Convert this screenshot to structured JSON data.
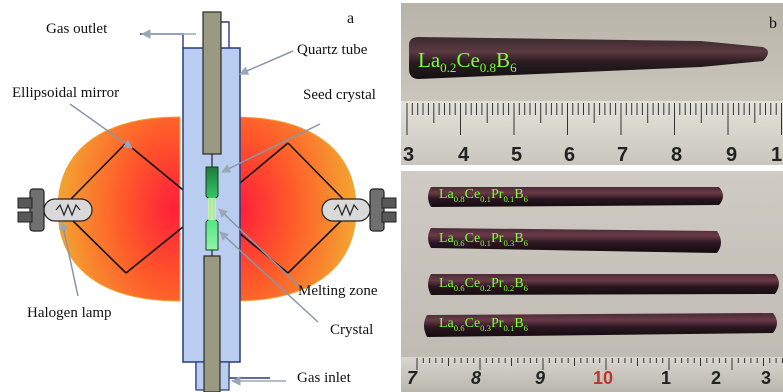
{
  "panel_a": {
    "letter": "a",
    "labels": {
      "gas_outlet": "Gas outlet",
      "quartz_tube": "Quartz tube",
      "ellipsoidal_mirror": "Ellipsoidal mirror",
      "seed_crystal": "Seed crystal",
      "halogen_lamp": "Halogen lamp",
      "melting_zone": "Melting zone",
      "crystal": "Crystal",
      "gas_inlet": "Gas inlet"
    }
  },
  "panel_b": {
    "letter": "b",
    "top_rod": {
      "base": [
        "La",
        "Ce",
        "B"
      ],
      "subs": [
        "0.2",
        "0.8",
        "6"
      ]
    },
    "top_ruler_numbers": [
      "3",
      "4",
      "5",
      "6",
      "7",
      "8",
      "9",
      "1"
    ],
    "rods": [
      {
        "base": [
          "La",
          "Ce",
          "Pr",
          "B"
        ],
        "subs": [
          "0.8",
          "0.1",
          "0.1",
          "6"
        ]
      },
      {
        "base": [
          "La",
          "Ce",
          "Pr",
          "B"
        ],
        "subs": [
          "0.6",
          "0.1",
          "0.3",
          "6"
        ]
      },
      {
        "base": [
          "La",
          "Ce",
          "Pr",
          "B"
        ],
        "subs": [
          "0.6",
          "0.2",
          "0.2",
          "6"
        ]
      },
      {
        "base": [
          "La",
          "Ce",
          "Pr",
          "B"
        ],
        "subs": [
          "0.6",
          "0.3",
          "0.1",
          "6"
        ]
      }
    ],
    "bottom_ruler_numbers": [
      "7",
      "8",
      "9",
      "10",
      "1",
      "2",
      "3"
    ]
  },
  "colors": {
    "tube_fill": "#b9cdf0",
    "tube_stroke": "#2a3a7a",
    "rod_fill": "#9a9a82",
    "mirror_hot": "#ff1f3a",
    "mirror_warm": "#ff8a1e",
    "mirror_edge": "#f0a030",
    "crystal_green": "#3fe07a",
    "formula_green": "#7dff3a"
  }
}
